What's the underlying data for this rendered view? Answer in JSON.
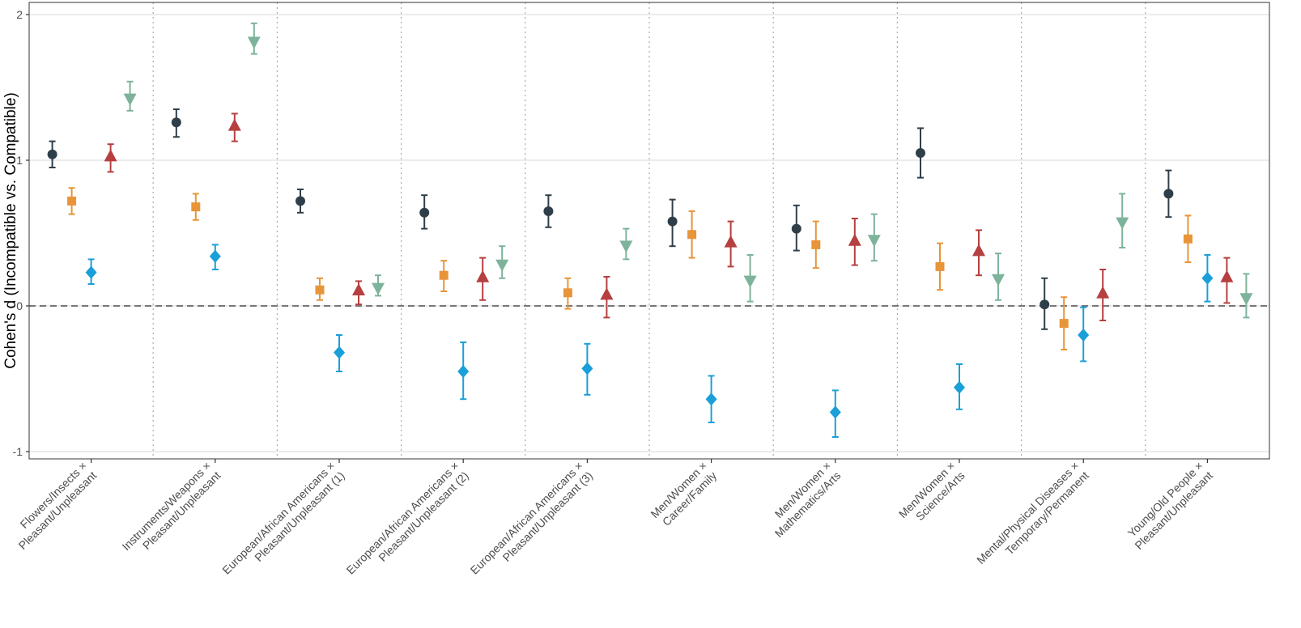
{
  "chart_data": {
    "type": "scatter",
    "title": "",
    "xlabel": "",
    "ylabel": "Cohen's d (Incompatible vs. Compatible)",
    "ylim": [
      -1.05,
      2.08
    ],
    "yticks": [
      -1,
      0,
      1,
      2
    ],
    "grid": "horizontal major lines",
    "reference_line": {
      "y": 0,
      "style": "dashed"
    },
    "legend": "none",
    "categories": [
      [
        "Flowers/Insects ×",
        "Pleasant/Unpleasant"
      ],
      [
        "Instruments/Weapons ×",
        "Pleasant/Unpleasant"
      ],
      [
        "European/African Americans ×",
        "Pleasant/Unpleasant (1)"
      ],
      [
        "European/African Americans ×",
        "Pleasant/Unpleasant (2)"
      ],
      [
        "European/African Americans ×",
        "Pleasant/Unpleasant (3)"
      ],
      [
        "Men/Women ×",
        "Career/Family"
      ],
      [
        "Men/Women ×",
        "Mathematics/Arts"
      ],
      [
        "Men/Women ×",
        "Science/Arts"
      ],
      [
        "Mental/Physical Diseases ×",
        "Temporary/Permanent"
      ],
      [
        "Young/Old People ×",
        "Pleasant/Unpleasant"
      ]
    ],
    "series": [
      {
        "color": "#2f3f4a",
        "shape": "circle",
        "values": [
          1.04,
          1.26,
          0.72,
          0.64,
          0.65,
          0.58,
          0.53,
          1.05,
          0.01,
          0.77
        ],
        "lower": [
          0.95,
          1.16,
          0.64,
          0.53,
          0.54,
          0.41,
          0.38,
          0.88,
          -0.16,
          0.61
        ],
        "upper": [
          1.13,
          1.35,
          0.8,
          0.76,
          0.76,
          0.73,
          0.69,
          1.22,
          0.19,
          0.93
        ]
      },
      {
        "color": "#e8953a",
        "shape": "square",
        "values": [
          0.72,
          0.68,
          0.11,
          0.21,
          0.09,
          0.49,
          0.42,
          0.27,
          -0.12,
          0.46
        ],
        "lower": [
          0.63,
          0.59,
          0.04,
          0.1,
          -0.02,
          0.33,
          0.26,
          0.11,
          -0.3,
          0.3
        ],
        "upper": [
          0.81,
          0.77,
          0.19,
          0.31,
          0.19,
          0.65,
          0.58,
          0.43,
          0.06,
          0.62
        ]
      },
      {
        "color": "#1a9fd9",
        "shape": "diamond",
        "values": [
          0.23,
          0.34,
          -0.32,
          -0.45,
          -0.43,
          -0.64,
          -0.73,
          -0.56,
          -0.2,
          0.19
        ],
        "lower": [
          0.15,
          0.25,
          -0.45,
          -0.64,
          -0.61,
          -0.8,
          -0.9,
          -0.71,
          -0.38,
          0.03
        ],
        "upper": [
          0.32,
          0.42,
          -0.2,
          -0.25,
          -0.26,
          -0.48,
          -0.58,
          -0.4,
          -0.01,
          0.35
        ]
      },
      {
        "color": "#b5403f",
        "shape": "triangle-up",
        "values": [
          1.02,
          1.23,
          0.1,
          0.19,
          0.07,
          0.43,
          0.44,
          0.37,
          0.08,
          0.19
        ],
        "lower": [
          0.92,
          1.13,
          0.01,
          0.04,
          -0.08,
          0.27,
          0.28,
          0.21,
          -0.1,
          0.02
        ],
        "upper": [
          1.11,
          1.32,
          0.17,
          0.33,
          0.2,
          0.58,
          0.6,
          0.52,
          0.25,
          0.33
        ]
      },
      {
        "color": "#7db39a",
        "shape": "triangle-down",
        "values": [
          1.43,
          1.82,
          0.13,
          0.29,
          0.42,
          0.18,
          0.46,
          0.19,
          0.58,
          0.06
        ],
        "lower": [
          1.34,
          1.73,
          0.07,
          0.19,
          0.32,
          0.03,
          0.31,
          0.04,
          0.4,
          -0.08
        ],
        "upper": [
          1.54,
          1.94,
          0.21,
          0.41,
          0.53,
          0.35,
          0.63,
          0.36,
          0.77,
          0.22
        ]
      }
    ]
  }
}
